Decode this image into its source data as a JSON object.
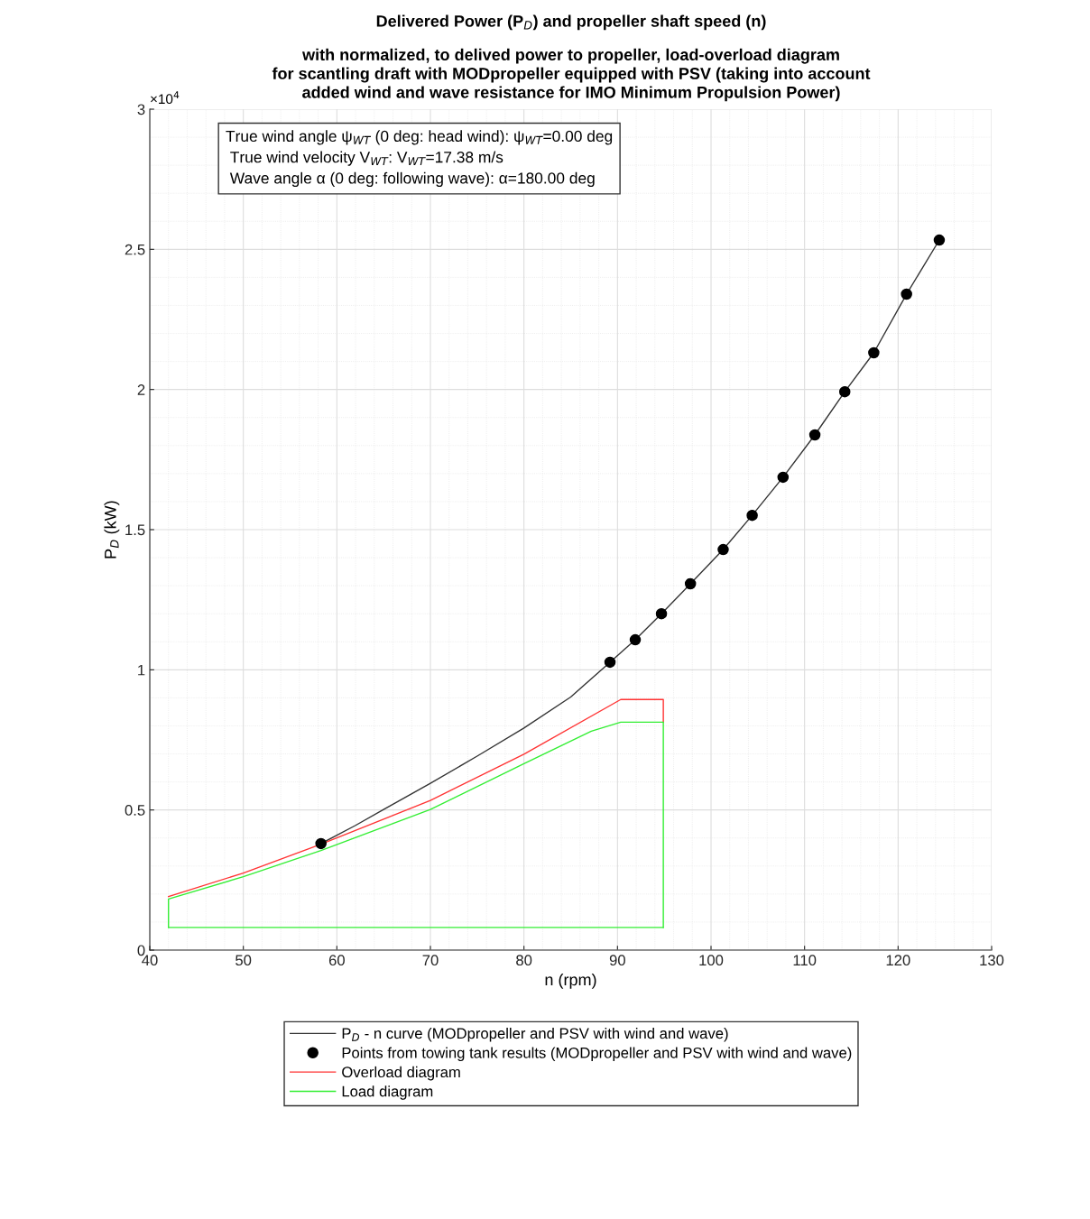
{
  "chart_data": {
    "type": "line",
    "title": "Delivered Power (P$_{D}$) and propeller shaft speed (n)",
    "subtitle": "with normalized, to delived power to propeller, load-overload diagram\nfor scantling draft with MODpropeller equipped with PSV (taking into account\nadded wind and wave resistance for IMO Minimum Propulsion Power)",
    "xlabel": "n (rpm)",
    "ylabel": "P$_{D}$ (kW)",
    "annotations": [
      "×10$^{4}$",
      "True wind angle ψ$_{WT}$ (0 deg: head wind): ψ$_{WT}$=0.00 deg",
      " True wind velocity V$_{WT}$: V$_{WT}$=17.38 m/s",
      " Wave angle α (0 deg: following wave): α=180.00 deg"
    ],
    "series": [
      {
        "name": "P$_{D}$ - n curve (MODpropeller and PSV with wind and wave)",
        "color": "#333333",
        "marker": "none",
        "x": [
          58.3,
          62,
          65,
          70,
          75,
          80,
          85,
          89.2,
          91.9,
          94.7,
          97.8,
          101.3,
          104.4,
          107.7,
          111.1,
          114.3,
          117.4,
          120.9,
          124.4
        ],
        "values": [
          0.38,
          0.445,
          0.502,
          0.595,
          0.692,
          0.792,
          0.903,
          1.027,
          1.107,
          1.2,
          1.307,
          1.429,
          1.551,
          1.687,
          1.838,
          1.992,
          2.131,
          2.34,
          2.533
        ]
      },
      {
        "name": "Points from towing tank results (MODpropeller and PSV with wind and wave)",
        "type": "scatter",
        "color": "#000000",
        "marker": "circle",
        "x": [
          58.3,
          89.2,
          91.9,
          94.7,
          97.8,
          101.3,
          104.4,
          107.7,
          111.1,
          114.3,
          117.4,
          120.9,
          124.4
        ],
        "values": [
          0.38,
          1.027,
          1.107,
          1.2,
          1.307,
          1.429,
          1.551,
          1.687,
          1.838,
          1.992,
          2.131,
          2.34,
          2.533
        ]
      },
      {
        "name": "Overload diagram",
        "color": "#ff3333",
        "marker": "none",
        "x": [
          42,
          50,
          58.3,
          70,
          80,
          90.35,
          94.9,
          94.9
        ],
        "values": [
          0.191,
          0.275,
          0.378,
          0.534,
          0.699,
          0.894,
          0.894,
          0.813
        ]
      },
      {
        "name": "Load diagram",
        "color": "#33ee33",
        "marker": "none",
        "x": [
          42,
          42,
          50,
          58.3,
          70,
          80,
          87.2,
          90.35,
          94.9,
          94.9
        ],
        "values": [
          0.081,
          0.182,
          0.262,
          0.355,
          0.502,
          0.665,
          0.781,
          0.813,
          0.813,
          0.081
        ]
      },
      {
        "color": "#33ee33",
        "marker": "none",
        "x": [
          42,
          94.9
        ],
        "values": [
          0.081,
          0.081
        ]
      }
    ],
    "xlim": [
      40,
      130
    ],
    "xticks": [
      40,
      50,
      60,
      70,
      80,
      90,
      100,
      110,
      120,
      130
    ],
    "ylim": [
      0,
      3
    ],
    "yticks": [
      0,
      0.5,
      1,
      1.5,
      2,
      2.5,
      3
    ],
    "grid": true,
    "legend": "bottom",
    "line_style": "solid"
  }
}
